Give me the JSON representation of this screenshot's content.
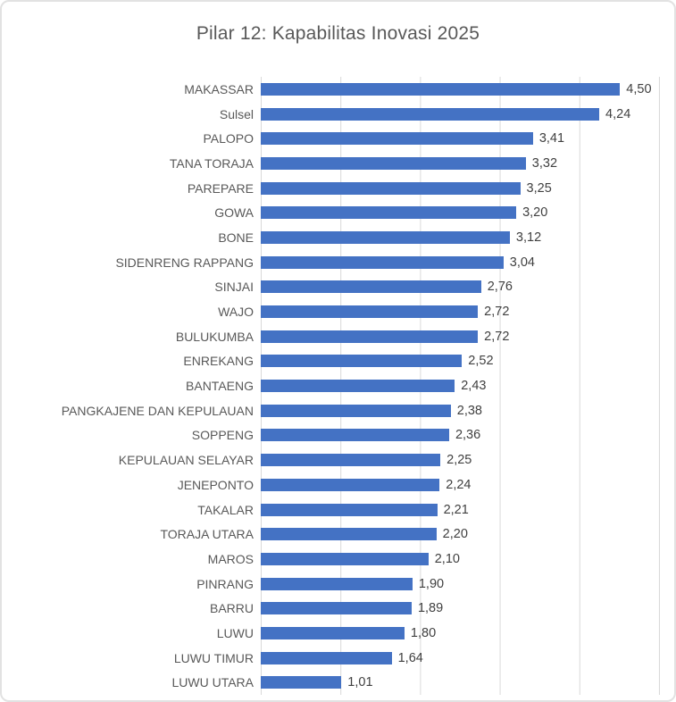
{
  "chart_data": {
    "type": "bar",
    "orientation": "horizontal",
    "title": "Pilar 12: Kapabilitas Inovasi 2025",
    "xlabel": "",
    "ylabel": "",
    "xlim": [
      0,
      5
    ],
    "gridlines": "vertical, every 1.0 unit",
    "legend": "none",
    "bar_color": "#4472C4",
    "gridline_color": "#D9D9D9",
    "category_label_color": "#595959",
    "value_label_color": "#404040",
    "categories": [
      "MAKASSAR",
      "Sulsel",
      "PALOPO",
      "TANA TORAJA",
      "PAREPARE",
      "GOWA",
      "BONE",
      "SIDENRENG RAPPANG",
      "SINJAI",
      "WAJO",
      "BULUKUMBA",
      "ENREKANG",
      "BANTAENG",
      "PANGKAJENE DAN KEPULAUAN",
      "SOPPENG",
      "KEPULAUAN SELAYAR",
      "JENEPONTO",
      "TAKALAR",
      "TORAJA UTARA",
      "MAROS",
      "PINRANG",
      "BARRU",
      "LUWU",
      "LUWU TIMUR",
      "LUWU UTARA"
    ],
    "values": [
      4.5,
      4.24,
      3.41,
      3.32,
      3.25,
      3.2,
      3.12,
      3.04,
      2.76,
      2.72,
      2.72,
      2.52,
      2.43,
      2.38,
      2.36,
      2.25,
      2.24,
      2.21,
      2.2,
      2.1,
      1.9,
      1.89,
      1.8,
      1.64,
      1.01
    ],
    "value_labels": [
      "4,50",
      "4,24",
      "3,41",
      "3,32",
      "3,25",
      "3,20",
      "3,12",
      "3,04",
      "2,76",
      "2,72",
      "2,72",
      "2,52",
      "2,43",
      "2,38",
      "2,36",
      "2,25",
      "2,24",
      "2,21",
      "2,20",
      "2,10",
      "1,90",
      "1,89",
      "1,80",
      "1,64",
      "1,01"
    ]
  }
}
